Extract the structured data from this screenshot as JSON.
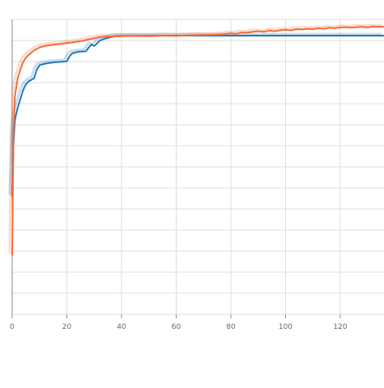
{
  "chart_data": {
    "type": "line",
    "x_ticks": [
      0,
      20,
      40,
      60,
      80,
      100,
      120
    ],
    "xlim": [
      0,
      136
    ],
    "ylim": [
      0,
      1
    ],
    "grid": true,
    "legend": "none",
    "series": [
      {
        "color": "#1f77b4",
        "points": [
          [
            0,
            0.4
          ],
          [
            0.5,
            0.58
          ],
          [
            1,
            0.66
          ],
          [
            2,
            0.7
          ],
          [
            3,
            0.73
          ],
          [
            4,
            0.76
          ],
          [
            5,
            0.78
          ],
          [
            6,
            0.79
          ],
          [
            8,
            0.8
          ],
          [
            9,
            0.83
          ],
          [
            10,
            0.845
          ],
          [
            12,
            0.85
          ],
          [
            14,
            0.853
          ],
          [
            16,
            0.855
          ],
          [
            18,
            0.856
          ],
          [
            20,
            0.858
          ],
          [
            21,
            0.875
          ],
          [
            22,
            0.885
          ],
          [
            24,
            0.89
          ],
          [
            27,
            0.892
          ],
          [
            28,
            0.905
          ],
          [
            29,
            0.915
          ],
          [
            30,
            0.91
          ],
          [
            31,
            0.918
          ],
          [
            32,
            0.928
          ],
          [
            34,
            0.935
          ],
          [
            36,
            0.94
          ],
          [
            38,
            0.943
          ],
          [
            40,
            0.944
          ],
          [
            60,
            0.945
          ],
          [
            80,
            0.945
          ],
          [
            100,
            0.945
          ],
          [
            120,
            0.945
          ],
          [
            136,
            0.945
          ]
        ]
      },
      {
        "color": "#f26b3a",
        "points": [
          [
            0,
            0.2
          ],
          [
            0.5,
            0.62
          ],
          [
            1,
            0.74
          ],
          [
            2,
            0.8
          ],
          [
            3,
            0.83
          ],
          [
            4,
            0.855
          ],
          [
            5,
            0.87
          ],
          [
            6,
            0.88
          ],
          [
            8,
            0.895
          ],
          [
            10,
            0.905
          ],
          [
            12,
            0.91
          ],
          [
            15,
            0.914
          ],
          [
            18,
            0.917
          ],
          [
            20,
            0.92
          ],
          [
            22,
            0.922
          ],
          [
            24,
            0.925
          ],
          [
            26,
            0.928
          ],
          [
            28,
            0.932
          ],
          [
            30,
            0.936
          ],
          [
            32,
            0.94
          ],
          [
            35,
            0.942
          ],
          [
            40,
            0.943
          ],
          [
            45,
            0.944
          ],
          [
            50,
            0.943
          ],
          [
            55,
            0.945
          ],
          [
            60,
            0.944
          ],
          [
            65,
            0.946
          ],
          [
            70,
            0.947
          ],
          [
            75,
            0.948
          ],
          [
            78,
            0.95
          ],
          [
            80,
            0.953
          ],
          [
            82,
            0.951
          ],
          [
            84,
            0.956
          ],
          [
            86,
            0.955
          ],
          [
            88,
            0.958
          ],
          [
            90,
            0.96
          ],
          [
            92,
            0.958
          ],
          [
            94,
            0.962
          ],
          [
            96,
            0.96
          ],
          [
            98,
            0.963
          ],
          [
            100,
            0.965
          ],
          [
            102,
            0.963
          ],
          [
            104,
            0.967
          ],
          [
            106,
            0.966
          ],
          [
            108,
            0.968
          ],
          [
            110,
            0.967
          ],
          [
            112,
            0.97
          ],
          [
            114,
            0.968
          ],
          [
            116,
            0.972
          ],
          [
            118,
            0.97
          ],
          [
            120,
            0.973
          ],
          [
            122,
            0.974
          ],
          [
            124,
            0.972
          ],
          [
            126,
            0.974
          ],
          [
            128,
            0.975
          ],
          [
            130,
            0.973
          ],
          [
            132,
            0.976
          ],
          [
            134,
            0.975
          ],
          [
            136,
            0.976
          ]
        ]
      }
    ]
  }
}
